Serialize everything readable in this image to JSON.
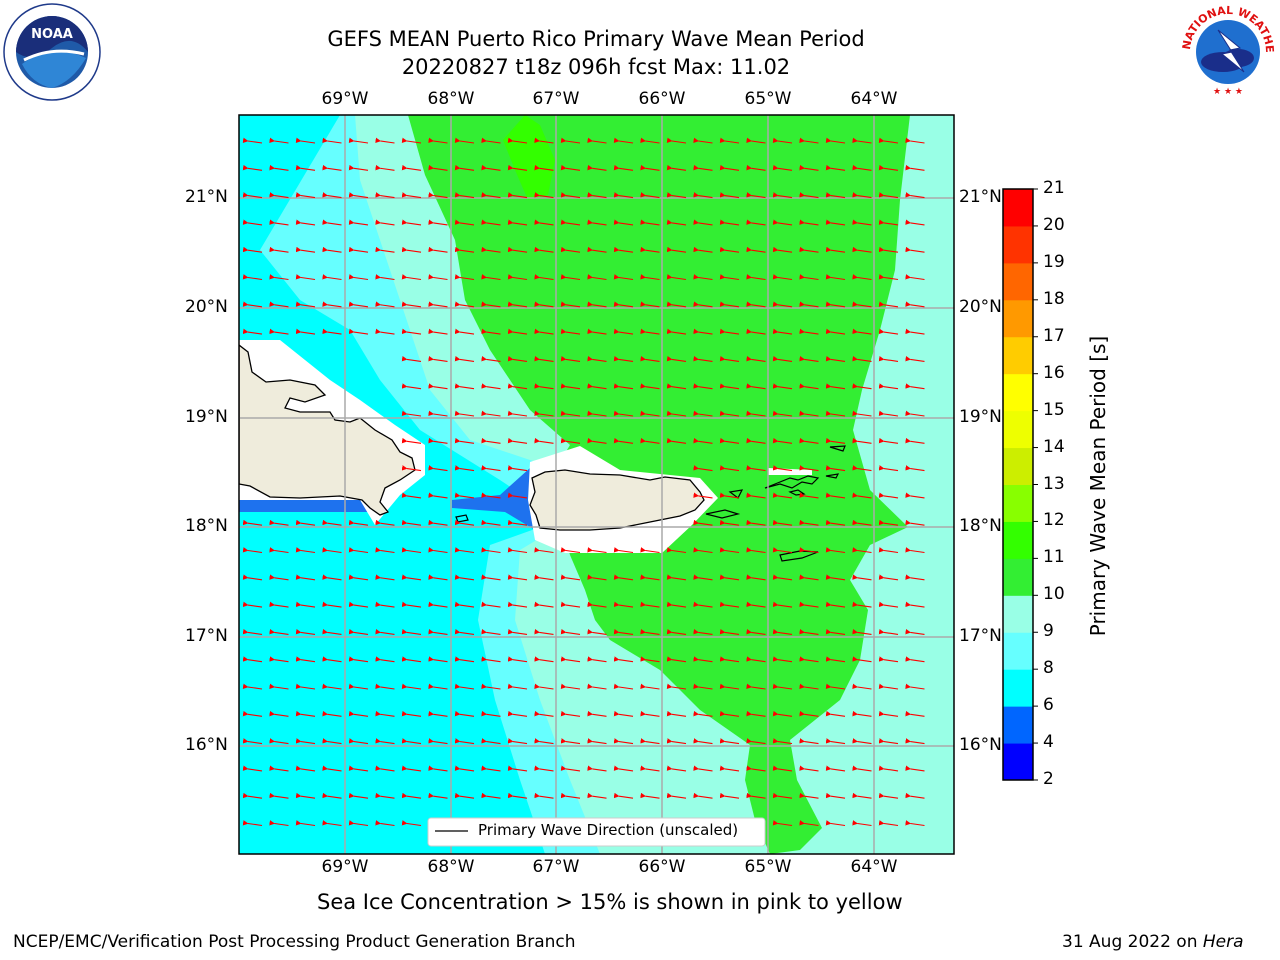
{
  "title": {
    "line1": "GEFS MEAN Puerto Rico Primary Wave Mean Period",
    "line2": "20220827 t18z 096h fcst   Max: 11.02"
  },
  "axes": {
    "lon_labels": [
      "69°W",
      "68°W",
      "67°W",
      "66°W",
      "65°W",
      "64°W"
    ],
    "lat_labels": [
      "21°N",
      "20°N",
      "19°N",
      "18°N",
      "17°N",
      "16°N"
    ]
  },
  "legend": {
    "label": "Primary Wave Direction (unscaled)"
  },
  "colorbar": {
    "label": "Primary Wave Mean Period [s]",
    "ticks": [
      "2",
      "4",
      "6",
      "8",
      "9",
      "10",
      "11",
      "12",
      "13",
      "14",
      "15",
      "16",
      "17",
      "18",
      "19",
      "20",
      "21"
    ],
    "colors": [
      "#0000ff",
      "#0066ff",
      "#00ffff",
      "#66ffff",
      "#99ffe6",
      "#33ee33",
      "#33ff00",
      "#88ff00",
      "#ccee00",
      "#eeff00",
      "#ffff00",
      "#ffcc00",
      "#ff9900",
      "#ff6600",
      "#ff3300",
      "#ff0000"
    ]
  },
  "subtitle": "Sea Ice Concentration > 15% is shown in pink to yellow",
  "footer": {
    "left": "NCEP/EMC/Verification Post Processing Product Generation Branch",
    "right_date": "31 Aug 2022 on ",
    "right_host": "Hera"
  },
  "logos": {
    "noaa_text": "NOAA",
    "nws_text": "NATIONAL WEATHER SERVICE"
  }
}
